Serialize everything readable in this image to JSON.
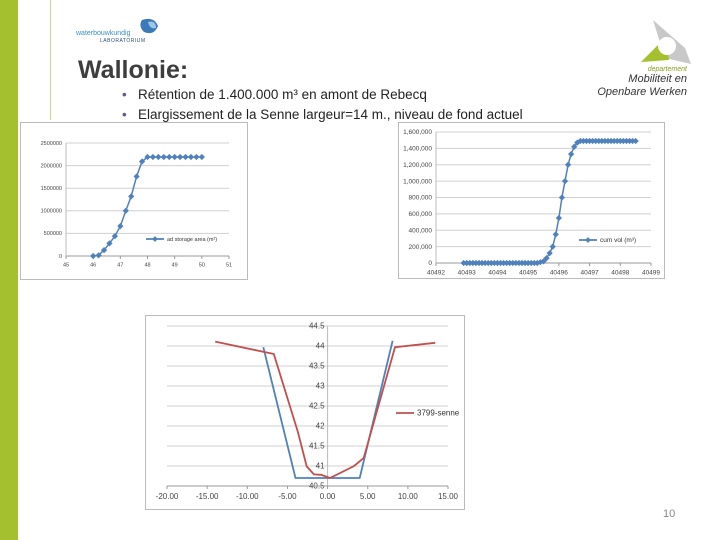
{
  "slide": {
    "title": "Wallonie:",
    "bullets": [
      "Rétention de 1.400.000 m³ en amont de Rebecq",
      "Elargissement de la Senne largeur=14 m., niveau de fond actuel"
    ],
    "page_number": "10",
    "logo_left": {
      "line1": "waterbouwkundig",
      "line2": "LABORATORIUM"
    },
    "logo_right": {
      "dept": "departement",
      "line1": "Mobiliteit en",
      "line2": "Openbare Werken"
    },
    "colors": {
      "accent_green": "#a5c02f",
      "series_blue": "#4f81bd",
      "series_red": "#c0504d"
    }
  },
  "chart_data": [
    {
      "type": "line",
      "markers": true,
      "xlim": [
        45,
        51
      ],
      "ylim": [
        0,
        2500000
      ],
      "xticks": [
        "45",
        "46",
        "47",
        "48",
        "49",
        "50",
        "51"
      ],
      "yticks": [
        "0",
        "500000",
        "1000000",
        "1500000",
        "2000000",
        "2500000"
      ],
      "grid": "horizontal",
      "legend": "right",
      "series": [
        {
          "name": "ad storage area (m²)",
          "color": "#4f81bd",
          "x": [
            46,
            46.2,
            46.4,
            46.6,
            46.8,
            47,
            47.2,
            47.4,
            47.6,
            47.8,
            48,
            48.2,
            48.4,
            48.6,
            48.8,
            49,
            49.2,
            49.4,
            49.6,
            49.8,
            50
          ],
          "y": [
            0,
            15000,
            130000,
            280000,
            440000,
            660000,
            1000000,
            1320000,
            1760000,
            2090000,
            2190000,
            2190000,
            2190000,
            2190000,
            2190000,
            2190000,
            2190000,
            2190000,
            2190000,
            2190000,
            2190000
          ]
        }
      ]
    },
    {
      "type": "line",
      "markers": true,
      "xlim": [
        40492,
        40499
      ],
      "ylim": [
        0,
        1600000
      ],
      "xticks": [
        "40492",
        "40493",
        "40494",
        "40495",
        "40496",
        "40497",
        "40498",
        "40499"
      ],
      "yticks": [
        "0",
        "200,000",
        "400,000",
        "600,000",
        "800,000",
        "1,000,000",
        "1,200,000",
        "1,400,000",
        "1,600,000"
      ],
      "grid": "horizontal",
      "legend": "right",
      "series": [
        {
          "name": "cum vol (m³)",
          "color": "#4f81bd",
          "x_start": 40492.9,
          "x_step": 0.1,
          "y": [
            0,
            0,
            0,
            0,
            0,
            0,
            0,
            0,
            0,
            0,
            0,
            0,
            0,
            0,
            0,
            0,
            0,
            0,
            0,
            0,
            0,
            0,
            0,
            0,
            0,
            10000,
            20000,
            60000,
            120000,
            200000,
            350000,
            550000,
            800000,
            1000000,
            1200000,
            1330000,
            1420000,
            1470000,
            1490000,
            1490000,
            1490000,
            1490000,
            1490000,
            1490000,
            1490000,
            1490000,
            1490000,
            1490000,
            1490000,
            1490000,
            1490000,
            1490000,
            1490000,
            1490000,
            1490000,
            1490000,
            1490000
          ]
        }
      ]
    },
    {
      "type": "line",
      "markers": false,
      "xlim": [
        -20,
        15
      ],
      "ylim": [
        40.5,
        44.5
      ],
      "xticks": [
        "-20.00",
        "-15.00",
        "-10.00",
        "-5.00",
        "0.00",
        "5.00",
        "10.00",
        "15.00"
      ],
      "yticks": [
        "40.5",
        "41",
        "41.5",
        "42",
        "42.5",
        "43",
        "43.5",
        "44",
        "44.5"
      ],
      "grid": "horizontal",
      "legend": "right",
      "series": [
        {
          "name": "",
          "color": "#4f81bd",
          "x": [
            -8,
            -4,
            4,
            8.1
          ],
          "y": [
            43.97,
            40.7,
            40.7,
            44.13
          ]
        },
        {
          "name": "3799-senne",
          "color": "#c0504d",
          "x": [
            -14,
            -6.7,
            -3.7,
            -2.6,
            -1.7,
            -0.8,
            0.3,
            3.3,
            4.5,
            8.4,
            13.4
          ],
          "y": [
            44.11,
            43.8,
            41.85,
            40.99,
            40.79,
            40.78,
            40.7,
            41.0,
            41.2,
            43.97,
            44.08
          ]
        }
      ]
    }
  ]
}
